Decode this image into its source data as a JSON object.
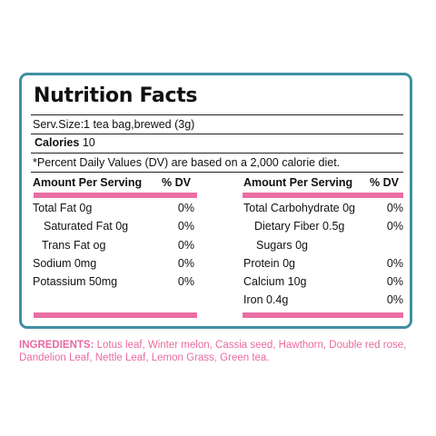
{
  "title": "Nutrition Facts",
  "serving": "Serv.Size:1 tea bag,brewed (3g)",
  "calories_label": "Calories",
  "calories_value": "10",
  "dv_note": "*Percent Daily Values (DV) are based on a 2,000 calorie diet.",
  "left": {
    "header_amount": "Amount Per Serving",
    "header_dv": "% DV",
    "rows": [
      {
        "label": "Total Fat 0g",
        "dv": "0%"
      },
      {
        "label": "Saturated Fat 0g",
        "dv": "0%"
      },
      {
        "label": "Trans Fat og",
        "dv": "0%"
      },
      {
        "label": "Sodium 0mg",
        "dv": "0%"
      },
      {
        "label": "Potassium 50mg",
        "dv": "0%"
      }
    ]
  },
  "right": {
    "header_amount": "Amount Per Serving",
    "header_dv": "% DV",
    "rows": [
      {
        "label": "Total Carbohydrate 0g",
        "dv": "0%"
      },
      {
        "label": "Dietary Fiber 0.5g",
        "dv": "0%"
      },
      {
        "label": "Sugars 0g",
        "dv": ""
      },
      {
        "label": "Protein 0g",
        "dv": "0%"
      },
      {
        "label": "Calcium 10g",
        "dv": "0%"
      },
      {
        "label": "Iron 0.4g",
        "dv": "0%"
      }
    ]
  },
  "ingredients_label": "INGREDIENTS:",
  "ingredients_text": " Lotus leaf, Winter melon, Cassia seed, Hawthorn, Double red rose, Dandelion Leaf, Nettle Leaf, Lemon Grass, Green tea.",
  "colors": {
    "border": "#3f90a4",
    "accent": "#ea6fa2",
    "ingredients": "#e96aa0"
  }
}
